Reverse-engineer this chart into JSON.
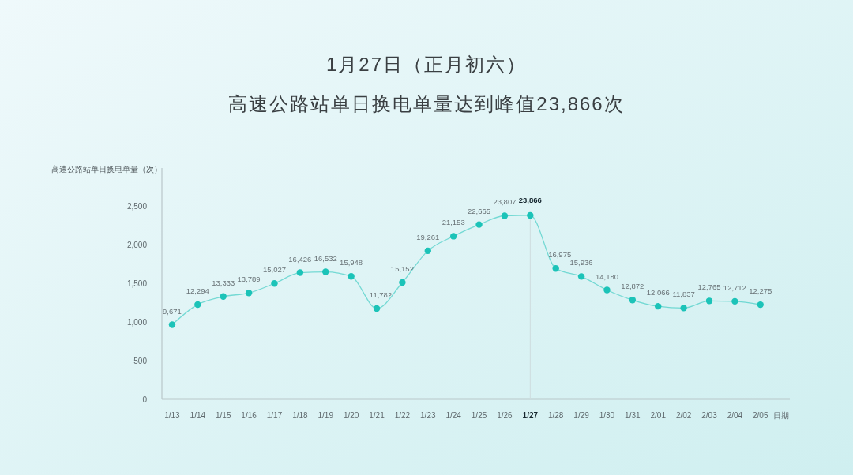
{
  "chart_data": {
    "type": "line",
    "title": "1月27日（正月初六）",
    "subtitle": "高速公路站单日换电单量达到峰值23,866次",
    "ylabel": "高速公路站单日换电单量（次）",
    "xlabel": "日期",
    "categories": [
      "1/13",
      "1/14",
      "1/15",
      "1/16",
      "1/17",
      "1/18",
      "1/19",
      "1/20",
      "1/21",
      "1/22",
      "1/23",
      "1/24",
      "1/25",
      "1/26",
      "1/27",
      "1/28",
      "1/29",
      "1/30",
      "1/31",
      "2/01",
      "2/02",
      "2/03",
      "2/04",
      "2/05"
    ],
    "series": [
      {
        "color": "#1cc3b8",
        "axis": "y2",
        "values": [
          9671,
          12294,
          13333,
          13789,
          15027,
          16426,
          16532,
          15948,
          11782,
          15152,
          19261,
          21153,
          22665,
          23807,
          23866,
          16975,
          15936,
          14180,
          12872,
          12066,
          11837,
          12765,
          12712,
          12275
        ],
        "value_labels": [
          "9,671",
          "12,294",
          "13,333",
          "13,789",
          "15,027",
          "16,426",
          "16,532",
          "15,948",
          "11,782",
          "15,152",
          "19,261",
          "21,153",
          "22,665",
          "23,807",
          "23,866",
          "16,975",
          "15,936",
          "14,180",
          "12,872",
          "12,066",
          "11,837",
          "12,765",
          "12,712",
          "12,275"
        ]
      }
    ],
    "ylim": [
      0,
      3000
    ],
    "yticks": [
      0,
      500,
      {
        "value": 1000,
        "label": "1,000"
      },
      {
        "value": 1500,
        "label": "1,500"
      },
      {
        "value": 2000,
        "label": "2,000"
      },
      {
        "value": 2500,
        "label": "2,500"
      }
    ],
    "y2lim": [
      0,
      30000
    ],
    "ref_lines": [
      {
        "axis": "x",
        "value": "1/27",
        "color": "#cfdcde"
      }
    ],
    "marker": "circle",
    "line_style": "solid"
  }
}
